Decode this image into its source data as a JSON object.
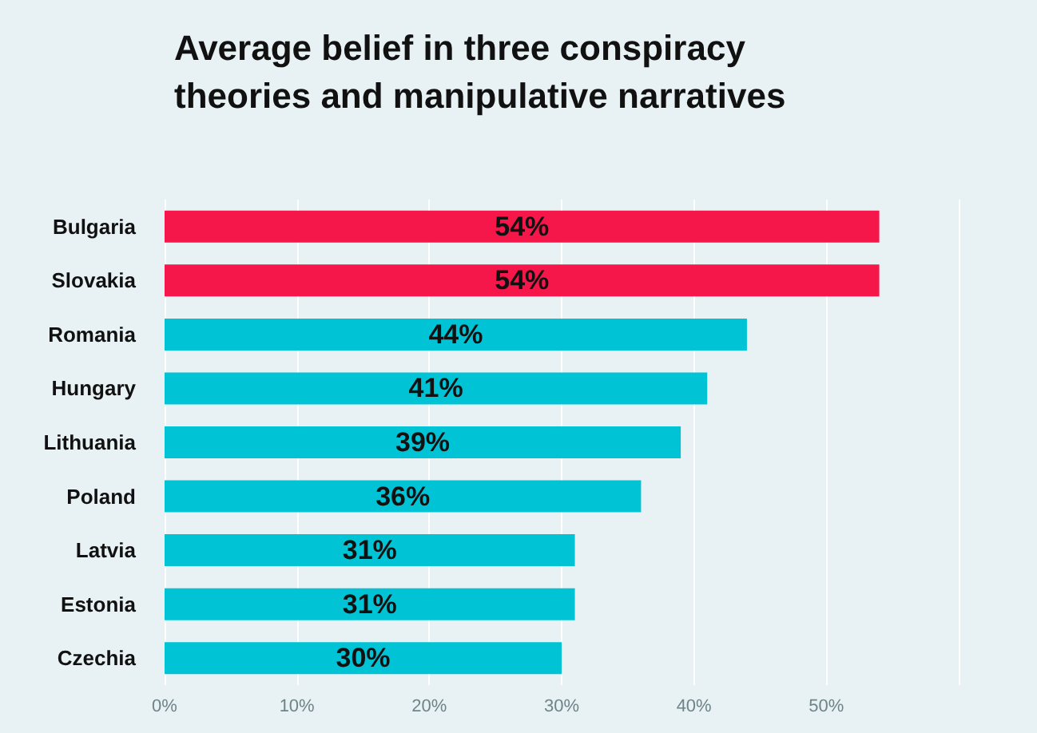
{
  "chart_data": {
    "type": "bar",
    "orientation": "horizontal",
    "title": "Average belief in three conspiracy\ntheories and manipulative narratives",
    "categories": [
      "Bulgaria",
      "Slovakia",
      "Romania",
      "Hungary",
      "Lithuania",
      "Poland",
      "Latvia",
      "Estonia",
      "Czechia"
    ],
    "values": [
      54,
      54,
      44,
      41,
      39,
      36,
      31,
      31,
      30
    ],
    "colors": [
      "#f5164a",
      "#f5164a",
      "#00c4d6",
      "#00c4d6",
      "#00c4d6",
      "#00c4d6",
      "#00c4d6",
      "#00c4d6",
      "#00c4d6"
    ],
    "value_labels": [
      "54%",
      "54%",
      "44%",
      "41%",
      "39%",
      "36%",
      "31%",
      "31%",
      "30%"
    ],
    "xlim": [
      0,
      60
    ],
    "xticks": [
      {
        "value": 0,
        "label": "0%"
      },
      {
        "value": 10,
        "label": "10%"
      },
      {
        "value": 20,
        "label": "20%"
      },
      {
        "value": 30,
        "label": "30%"
      },
      {
        "value": 40,
        "label": "40%"
      },
      {
        "value": 50,
        "label": "50%"
      },
      {
        "value": 60,
        "label": null
      }
    ],
    "grid": "x"
  }
}
